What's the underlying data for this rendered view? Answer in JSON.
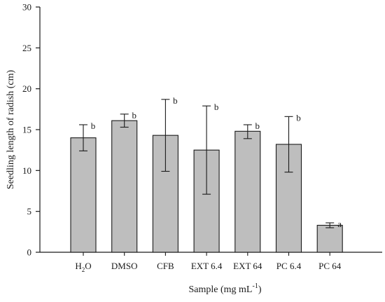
{
  "chart_data": {
    "type": "bar",
    "categories": [
      "H2O",
      "DMSO",
      "CFB",
      "EXT 6.4",
      "EXT 64",
      "PC 6.4",
      "PC 64"
    ],
    "category_labels": [
      {
        "text": "H",
        "sub": "2",
        "tail": "O"
      },
      {
        "text": "DMSO"
      },
      {
        "text": "CFB"
      },
      {
        "text": "EXT 6.4"
      },
      {
        "text": "EXT 64"
      },
      {
        "text": "PC 6.4"
      },
      {
        "text": "PC 64"
      }
    ],
    "values": [
      14.0,
      16.1,
      14.3,
      12.5,
      14.8,
      13.2,
      3.3
    ],
    "error_high": [
      15.6,
      16.9,
      18.7,
      17.9,
      15.6,
      16.6,
      3.6
    ],
    "error_low": [
      12.4,
      15.3,
      9.9,
      7.1,
      13.9,
      9.8,
      3.0
    ],
    "significance": [
      "b",
      "b",
      "b",
      "b",
      "b",
      "b",
      "a"
    ],
    "ylabel": "Seedling length of radish (cm)",
    "xlabel": {
      "text": "Sample (mg mL",
      "sup": "-1",
      "tail": ")"
    },
    "ylim": [
      0,
      30
    ],
    "yticks": [
      0,
      5,
      10,
      15,
      20,
      25,
      30
    ],
    "grid": false,
    "bar_color": "#bebebe",
    "bar_edge_color": "#1a1a1a"
  }
}
